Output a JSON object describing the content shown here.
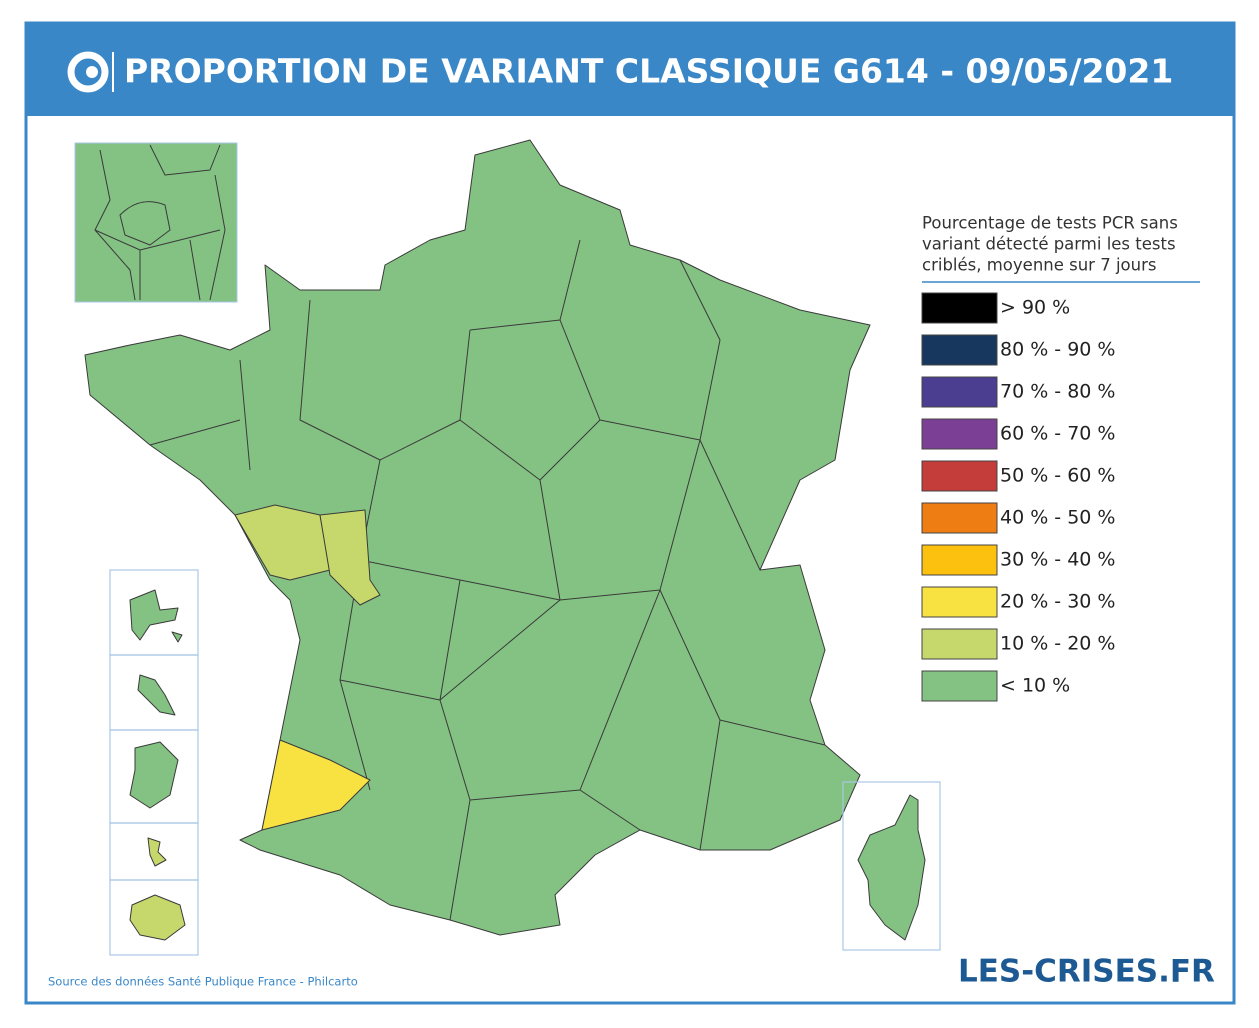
{
  "header": {
    "title": "PROPORTION DE VARIANT CLASSIQUE G614 - 09/05/2021"
  },
  "legend": {
    "title": [
      "Pourcentage de tests PCR sans",
      "variant détecté parmi les tests",
      "criblés, moyenne sur 7 jours"
    ],
    "items": [
      {
        "label": "> 90 %",
        "color": "#000000"
      },
      {
        "label": "80 % - 90 %",
        "color": "#17375e"
      },
      {
        "label": "70 % - 80 %",
        "color": "#4b3d8f"
      },
      {
        "label": "60 % - 70 %",
        "color": "#7b3f96"
      },
      {
        "label": "50 % - 60 %",
        "color": "#c43d3a"
      },
      {
        "label": "40 % - 50 %",
        "color": "#ee7d14"
      },
      {
        "label": "30 % - 40 %",
        "color": "#fcc10e"
      },
      {
        "label": "20 % - 30 %",
        "color": "#f7e241"
      },
      {
        "label": "10 % - 20 %",
        "color": "#c6d86c"
      },
      {
        "label": "< 10 %",
        "color": "#84c283"
      }
    ]
  },
  "source": "Source des données Santé Publique France - Philcarto",
  "brand": "LES-CRISES.FR"
}
